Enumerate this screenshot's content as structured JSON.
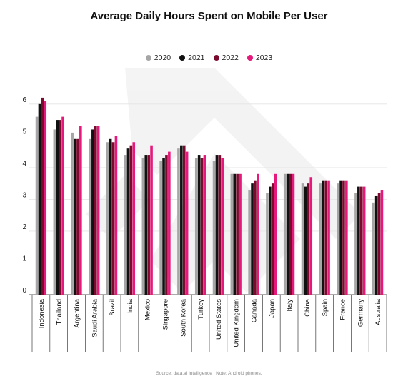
{
  "chart_data": {
    "type": "bar",
    "title": "Average Daily Hours Spent on Mobile Per User",
    "xlabel": "",
    "ylabel": "",
    "ylim": [
      0,
      6.4
    ],
    "yticks": [
      "0",
      "1",
      "2",
      "3",
      "4",
      "5",
      "6"
    ],
    "grid": true,
    "legend_position": "top",
    "categories": [
      "Indonesia",
      "Thailand",
      "Argentina",
      "Saudi Arabia",
      "Brazil",
      "India",
      "Mexico",
      "Singapore",
      "South Korea",
      "Turkey",
      "United States",
      "United Kingdom",
      "Canada",
      "Japan",
      "Italy",
      "China",
      "Spain",
      "France",
      "Germany",
      "Australia"
    ],
    "series": [
      {
        "name": "2020",
        "color": "#a6a6a6",
        "values": [
          5.6,
          5.2,
          5.1,
          4.9,
          4.8,
          4.4,
          4.3,
          4.2,
          4.6,
          4.3,
          4.2,
          3.8,
          3.3,
          3.2,
          3.8,
          3.5,
          3.5,
          3.5,
          3.2,
          2.9
        ]
      },
      {
        "name": "2021",
        "color": "#111111",
        "values": [
          6.0,
          5.5,
          4.9,
          5.2,
          4.9,
          4.6,
          4.4,
          4.3,
          4.7,
          4.4,
          4.4,
          3.8,
          3.5,
          3.4,
          3.8,
          3.4,
          3.6,
          3.6,
          3.4,
          3.1
        ]
      },
      {
        "name": "2022",
        "color": "#7a0a2e",
        "values": [
          6.2,
          5.5,
          4.9,
          5.3,
          4.8,
          4.7,
          4.4,
          4.4,
          4.7,
          4.3,
          4.4,
          3.8,
          3.6,
          3.5,
          3.8,
          3.5,
          3.6,
          3.6,
          3.4,
          3.2
        ]
      },
      {
        "name": "2023",
        "color": "#e5197b",
        "values": [
          6.1,
          5.6,
          5.3,
          5.3,
          5.0,
          4.8,
          4.7,
          4.5,
          4.5,
          4.4,
          4.3,
          3.8,
          3.8,
          3.8,
          3.8,
          3.7,
          3.6,
          3.6,
          3.4,
          3.3
        ]
      }
    ],
    "source": "Source: data.ai Intelligence | Note: Android phones."
  }
}
